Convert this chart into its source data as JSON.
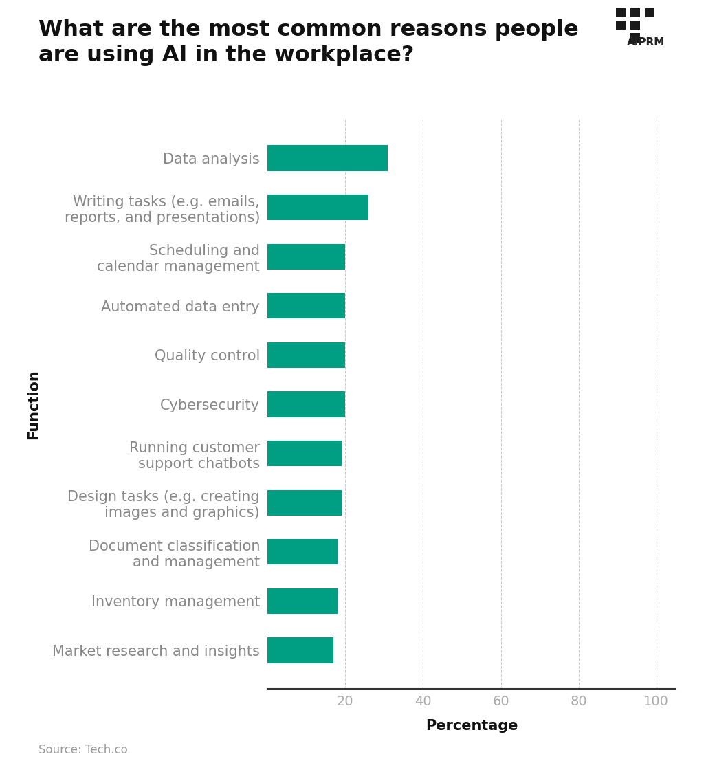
{
  "title_line1": "What are the most common reasons people",
  "title_line2": "are using AI in the workplace?",
  "categories": [
    "Data analysis",
    "Writing tasks (e.g. emails,\nreports, and presentations)",
    "Scheduling and\ncalendar management",
    "Automated data entry",
    "Quality control",
    "Cybersecurity",
    "Running customer\nsupport chatbots",
    "Design tasks (e.g. creating\nimages and graphics)",
    "Document classification\nand management",
    "Inventory management",
    "Market research and insights"
  ],
  "values": [
    31,
    26,
    20,
    20,
    20,
    20,
    19,
    19,
    18,
    18,
    17
  ],
  "bar_color": "#009e82",
  "ylabel": "Function",
  "xlabel": "Percentage",
  "xlim": [
    0,
    105
  ],
  "xticks": [
    20,
    40,
    60,
    80,
    100
  ],
  "xtick_labels": [
    "20",
    "40",
    "60",
    "80",
    "100"
  ],
  "source": "Source: Tech.co",
  "background_color": "#ffffff",
  "title_fontsize": 23,
  "axis_label_fontsize": 15,
  "ytick_fontsize": 15,
  "xtick_fontsize": 14,
  "source_fontsize": 12,
  "bar_height": 0.52,
  "gridline_color": "#cccccc",
  "gridline_style": "--",
  "ytick_color": "#888888",
  "xtick_color": "#aaaaaa",
  "spine_color": "#333333"
}
